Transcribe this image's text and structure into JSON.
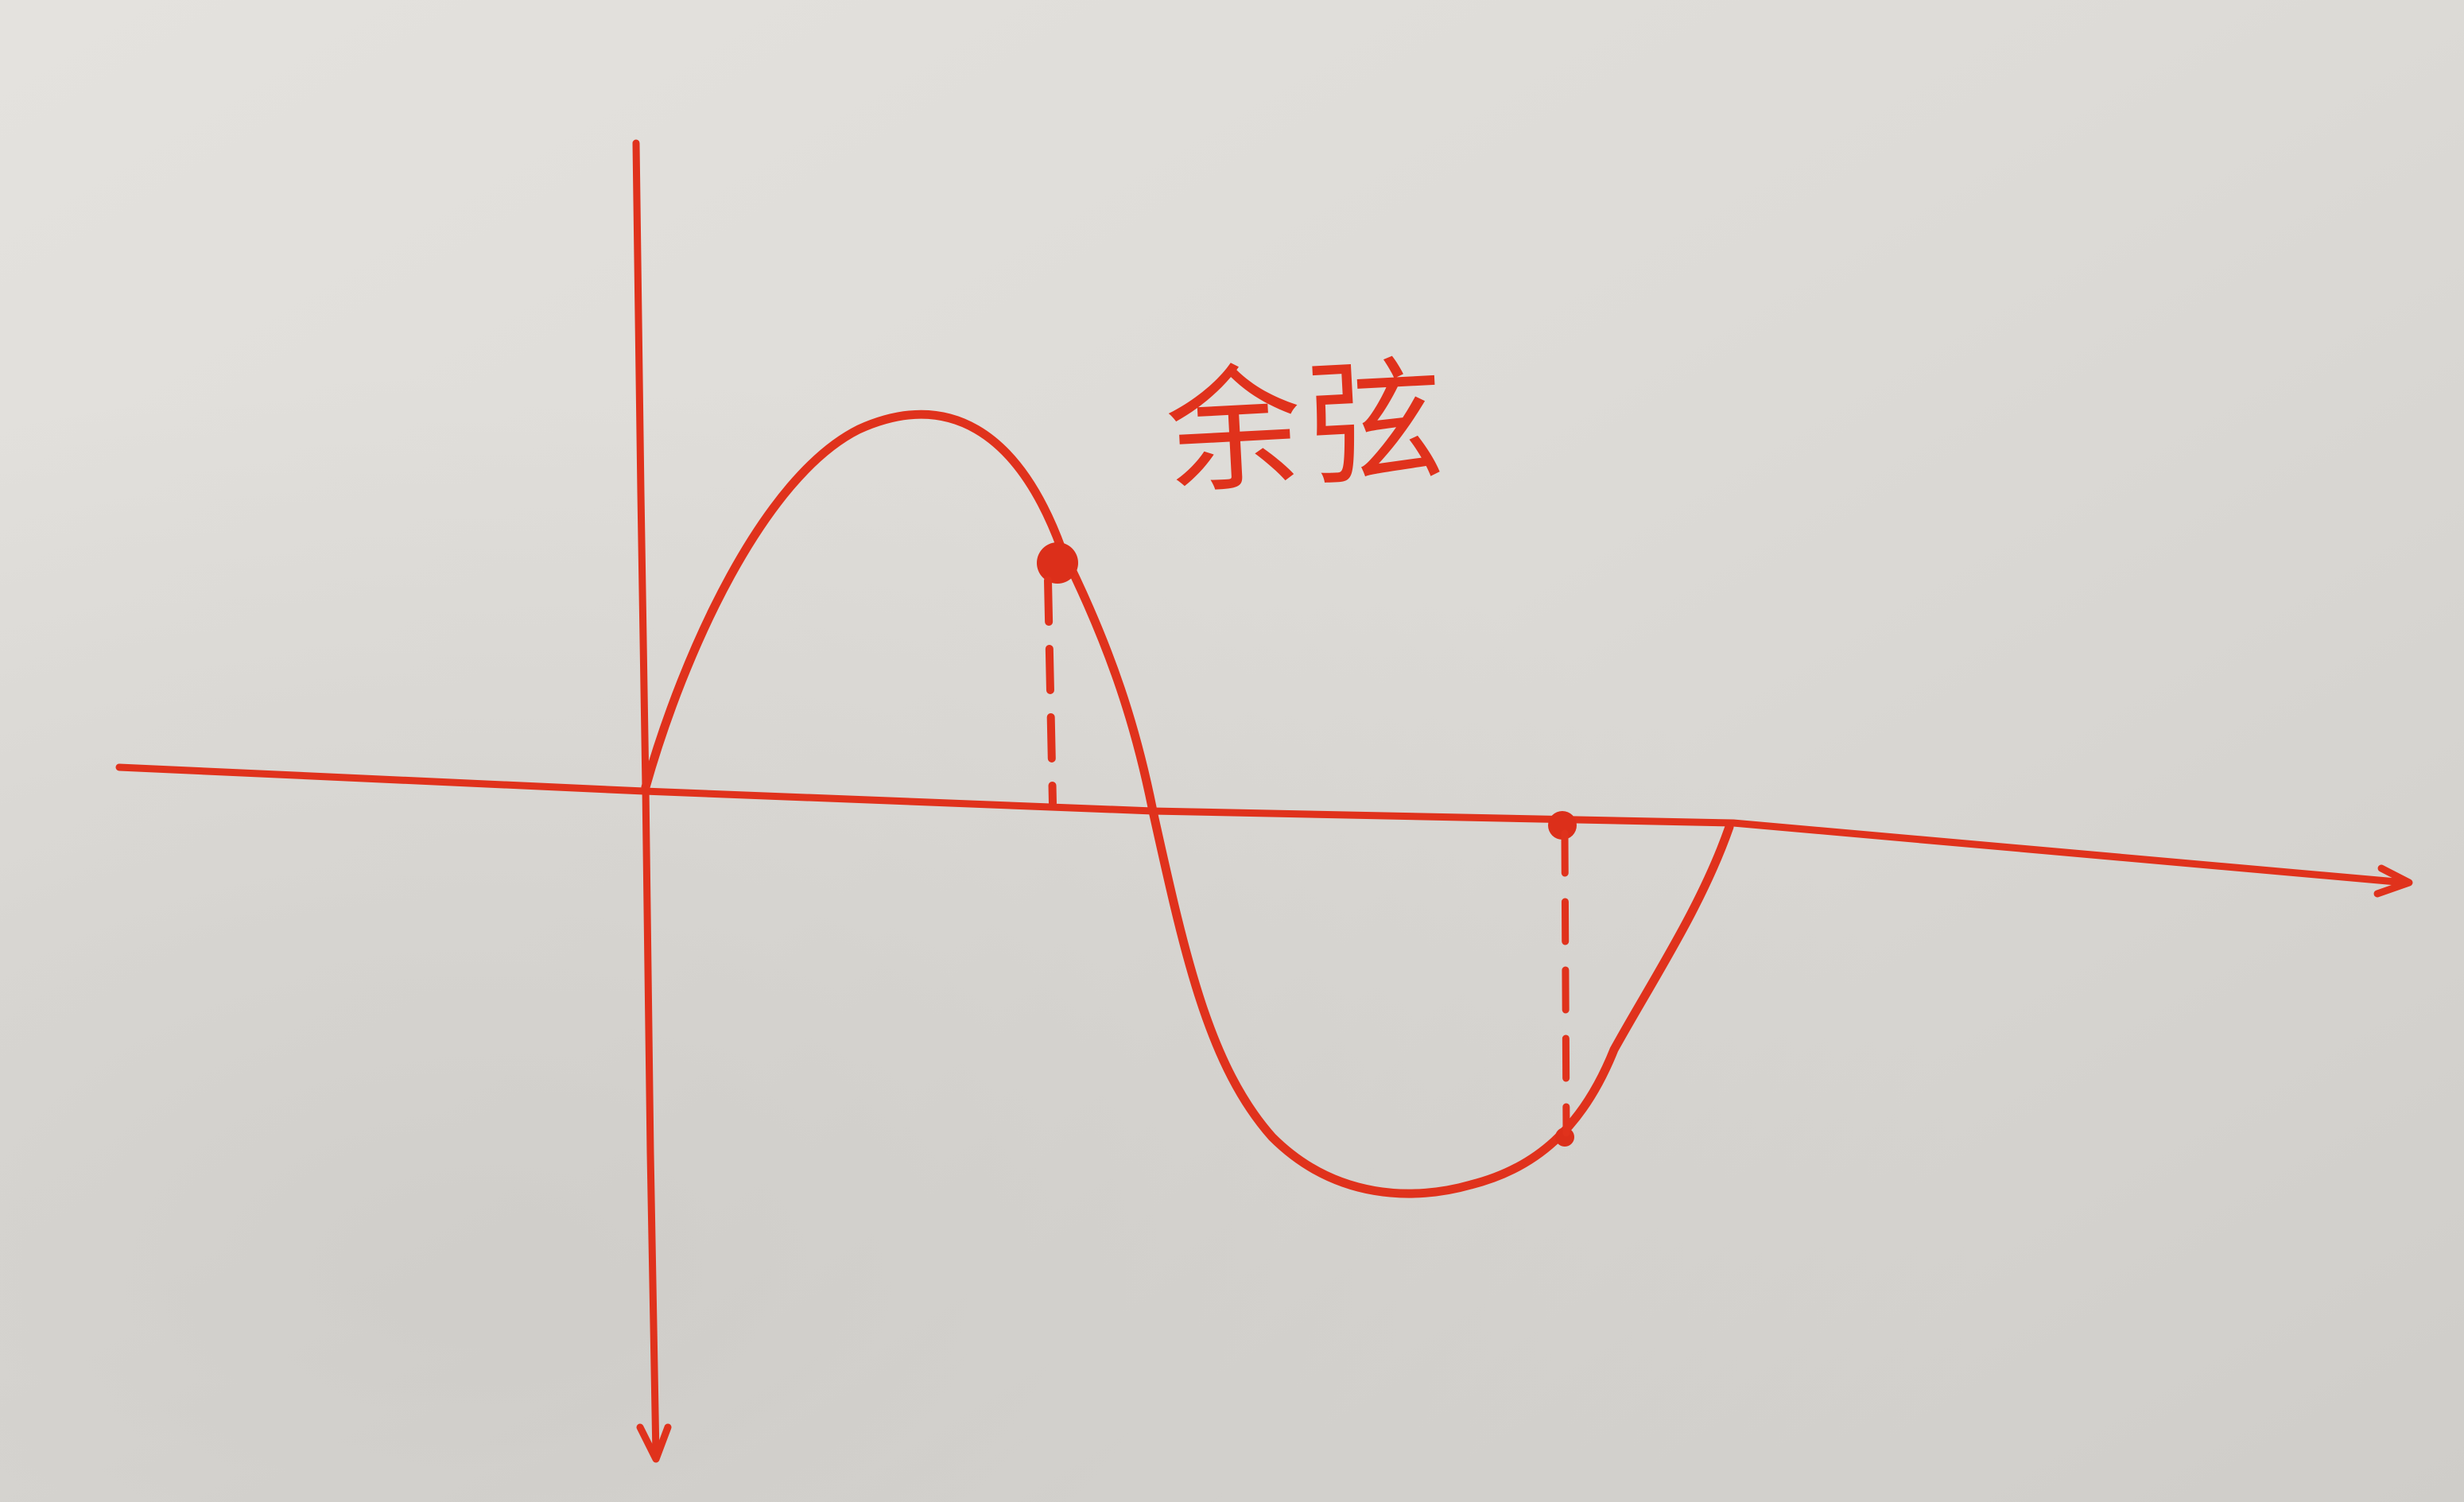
{
  "diagram": {
    "label": "余弦",
    "ink_color": "#e0321c",
    "paper_color": "#dcdad6",
    "elements": {
      "horizontal_axis": "x-axis",
      "vertical_axis": "y-axis",
      "curve": "sine-like wave",
      "marked_points": 2,
      "dashed_guides": 2
    }
  }
}
